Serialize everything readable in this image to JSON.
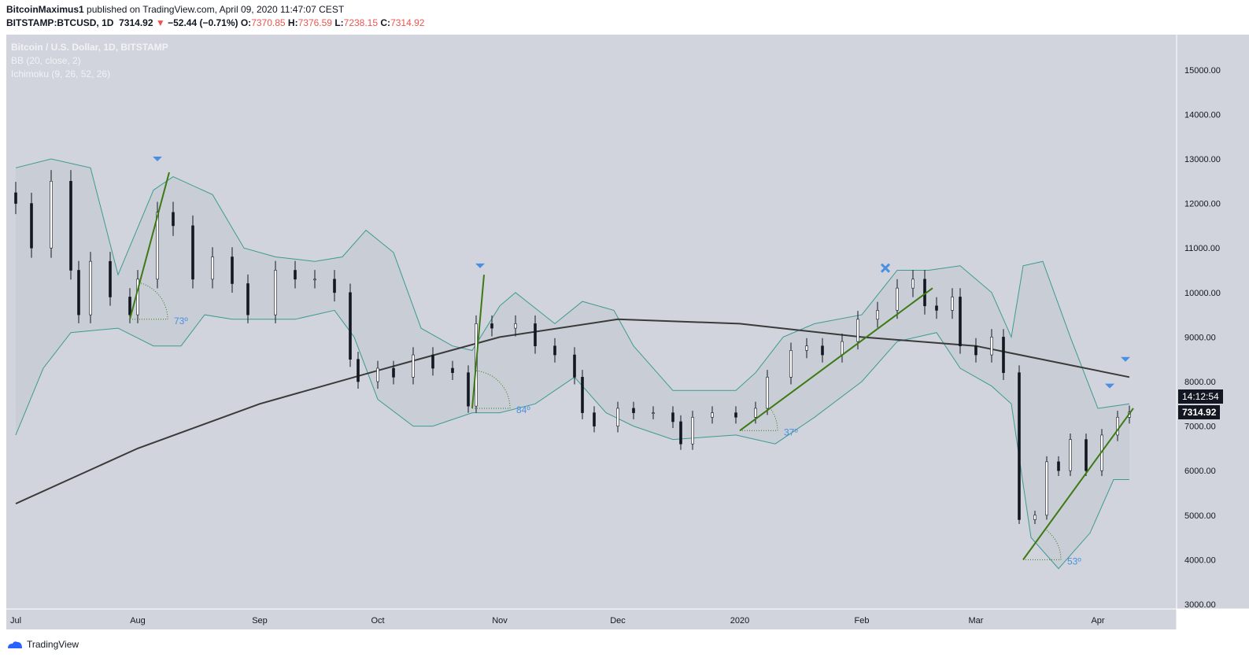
{
  "header": {
    "author": "BitcoinMaximus1",
    "published": "published on TradingView.com, April 09, 2020 11:47:07 CEST",
    "symbol": "BITSTAMP:BTCUSD, 1D",
    "last": "7314.92",
    "change": "−52.44 (−0.71%)",
    "o_label": "O:",
    "o": "7370.85",
    "h_label": "H:",
    "h": "7376.59",
    "l_label": "L:",
    "l": "7238.15",
    "c_label": "C:",
    "c": "7314.92"
  },
  "legend": {
    "series": "Bitcoin / U.S. Dollar, 1D, BITSTAMP",
    "bb": "BB (20, close, 2)",
    "ichimoku": "Ichimoku (9, 26, 52, 26)"
  },
  "price_tag": "7314.92",
  "countdown": "14:12:54",
  "footer": {
    "brand": "TradingView"
  },
  "colors": {
    "background": "#d1d4dc",
    "up": "#ffffff",
    "down": "#131722",
    "band": "#3d9a92",
    "ma": "#3a3a3a",
    "trend": "#3c7a13",
    "annotation": "#4a90e2"
  },
  "chart_data": {
    "type": "candlestick",
    "ylim": [
      3000,
      15500
    ],
    "yticks": [
      3000,
      4000,
      5000,
      6000,
      7000,
      8000,
      9000,
      10000,
      11000,
      12000,
      13000,
      14000,
      15000
    ],
    "ytick_labels": [
      "3000.00",
      "4000.00",
      "5000.00",
      "6000.00",
      "7000.00",
      "8000.00",
      "9000.00",
      "10000.00",
      "11000.00",
      "12000.00",
      "13000.00",
      "14000.00",
      "15000.00"
    ],
    "xticks": [
      {
        "date": "2019-07-01",
        "label": "Jul"
      },
      {
        "date": "2019-08-01",
        "label": "Aug"
      },
      {
        "date": "2019-09-01",
        "label": "Sep"
      },
      {
        "date": "2019-10-01",
        "label": "Oct"
      },
      {
        "date": "2019-11-01",
        "label": "Nov"
      },
      {
        "date": "2019-12-01",
        "label": "Dec"
      },
      {
        "date": "2020-01-01",
        "label": "2020"
      },
      {
        "date": "2020-02-01",
        "label": "Feb"
      },
      {
        "date": "2020-03-01",
        "label": "Mar"
      },
      {
        "date": "2020-04-01",
        "label": "Apr"
      }
    ],
    "closes": [
      [
        "2019-07-01",
        12000
      ],
      [
        "2019-07-05",
        11000
      ],
      [
        "2019-07-10",
        12500
      ],
      [
        "2019-07-15",
        10500
      ],
      [
        "2019-07-17",
        9500
      ],
      [
        "2019-07-20",
        10700
      ],
      [
        "2019-07-25",
        9900
      ],
      [
        "2019-07-30",
        9500
      ],
      [
        "2019-08-01",
        10300
      ],
      [
        "2019-08-06",
        11800
      ],
      [
        "2019-08-10",
        11500
      ],
      [
        "2019-08-15",
        10300
      ],
      [
        "2019-08-20",
        10800
      ],
      [
        "2019-08-25",
        10200
      ],
      [
        "2019-08-29",
        9500
      ],
      [
        "2019-09-05",
        10500
      ],
      [
        "2019-09-10",
        10300
      ],
      [
        "2019-09-15",
        10300
      ],
      [
        "2019-09-20",
        10000
      ],
      [
        "2019-09-24",
        8500
      ],
      [
        "2019-09-26",
        8000
      ],
      [
        "2019-10-01",
        8300
      ],
      [
        "2019-10-05",
        8100
      ],
      [
        "2019-10-10",
        8600
      ],
      [
        "2019-10-15",
        8300
      ],
      [
        "2019-10-20",
        8200
      ],
      [
        "2019-10-24",
        7450
      ],
      [
        "2019-10-26",
        9300
      ],
      [
        "2019-10-30",
        9200
      ],
      [
        "2019-11-05",
        9300
      ],
      [
        "2019-11-10",
        8800
      ],
      [
        "2019-11-15",
        8600
      ],
      [
        "2019-11-20",
        8100
      ],
      [
        "2019-11-22",
        7300
      ],
      [
        "2019-11-25",
        7000
      ],
      [
        "2019-12-01",
        7400
      ],
      [
        "2019-12-05",
        7300
      ],
      [
        "2019-12-10",
        7300
      ],
      [
        "2019-12-15",
        7100
      ],
      [
        "2019-12-17",
        6600
      ],
      [
        "2019-12-20",
        7200
      ],
      [
        "2019-12-25",
        7300
      ],
      [
        "2019-12-31",
        7200
      ],
      [
        "2020-01-05",
        7400
      ],
      [
        "2020-01-08",
        8100
      ],
      [
        "2020-01-14",
        8700
      ],
      [
        "2020-01-18",
        8800
      ],
      [
        "2020-01-22",
        8600
      ],
      [
        "2020-01-27",
        8900
      ],
      [
        "2020-01-31",
        9400
      ],
      [
        "2020-02-05",
        9600
      ],
      [
        "2020-02-10",
        10100
      ],
      [
        "2020-02-14",
        10300
      ],
      [
        "2020-02-17",
        9700
      ],
      [
        "2020-02-20",
        9600
      ],
      [
        "2020-02-24",
        9900
      ],
      [
        "2020-02-26",
        8800
      ],
      [
        "2020-03-01",
        8600
      ],
      [
        "2020-03-05",
        9000
      ],
      [
        "2020-03-08",
        8200
      ],
      [
        "2020-03-12",
        4900
      ],
      [
        "2020-03-16",
        5000
      ],
      [
        "2020-03-19",
        6200
      ],
      [
        "2020-03-22",
        6000
      ],
      [
        "2020-03-25",
        6700
      ],
      [
        "2020-03-29",
        6000
      ],
      [
        "2020-04-02",
        6800
      ],
      [
        "2020-04-06",
        7200
      ],
      [
        "2020-04-09",
        7315
      ]
    ],
    "bb_upper": [
      [
        "2019-07-01",
        12800
      ],
      [
        "2019-07-10",
        13000
      ],
      [
        "2019-07-20",
        12800
      ],
      [
        "2019-07-27",
        10400
      ],
      [
        "2019-08-05",
        12300
      ],
      [
        "2019-08-10",
        12600
      ],
      [
        "2019-08-20",
        12200
      ],
      [
        "2019-08-28",
        11000
      ],
      [
        "2019-09-05",
        10800
      ],
      [
        "2019-09-15",
        10700
      ],
      [
        "2019-09-22",
        10800
      ],
      [
        "2019-09-28",
        11400
      ],
      [
        "2019-10-05",
        10900
      ],
      [
        "2019-10-12",
        9200
      ],
      [
        "2019-10-20",
        8800
      ],
      [
        "2019-10-25",
        8700
      ],
      [
        "2019-11-01",
        9700
      ],
      [
        "2019-11-05",
        10000
      ],
      [
        "2019-11-15",
        9300
      ],
      [
        "2019-11-22",
        9800
      ],
      [
        "2019-11-30",
        9600
      ],
      [
        "2019-12-05",
        8800
      ],
      [
        "2019-12-15",
        7800
      ],
      [
        "2019-12-31",
        7800
      ],
      [
        "2020-01-05",
        8200
      ],
      [
        "2020-01-12",
        9000
      ],
      [
        "2020-01-20",
        9300
      ],
      [
        "2020-02-01",
        9500
      ],
      [
        "2020-02-10",
        10500
      ],
      [
        "2020-02-18",
        10500
      ],
      [
        "2020-02-26",
        10600
      ],
      [
        "2020-03-05",
        10000
      ],
      [
        "2020-03-10",
        9000
      ],
      [
        "2020-03-13",
        10600
      ],
      [
        "2020-03-18",
        10700
      ],
      [
        "2020-03-25",
        9000
      ],
      [
        "2020-04-01",
        7400
      ],
      [
        "2020-04-09",
        7500
      ]
    ],
    "bb_lower": [
      [
        "2019-07-01",
        6800
      ],
      [
        "2019-07-08",
        8300
      ],
      [
        "2019-07-15",
        9100
      ],
      [
        "2019-07-27",
        9200
      ],
      [
        "2019-08-05",
        8800
      ],
      [
        "2019-08-12",
        8800
      ],
      [
        "2019-08-18",
        9500
      ],
      [
        "2019-08-25",
        9400
      ],
      [
        "2019-09-01",
        9400
      ],
      [
        "2019-09-10",
        9400
      ],
      [
        "2019-09-20",
        9600
      ],
      [
        "2019-09-25",
        9000
      ],
      [
        "2019-10-01",
        7600
      ],
      [
        "2019-10-10",
        7000
      ],
      [
        "2019-10-15",
        7000
      ],
      [
        "2019-10-25",
        7300
      ],
      [
        "2019-11-01",
        7300
      ],
      [
        "2019-11-10",
        7500
      ],
      [
        "2019-11-20",
        8100
      ],
      [
        "2019-11-28",
        7300
      ],
      [
        "2019-12-05",
        7000
      ],
      [
        "2019-12-15",
        6700
      ],
      [
        "2019-12-31",
        6800
      ],
      [
        "2020-01-10",
        6600
      ],
      [
        "2020-01-20",
        7200
      ],
      [
        "2020-02-01",
        8000
      ],
      [
        "2020-02-10",
        8900
      ],
      [
        "2020-02-20",
        9100
      ],
      [
        "2020-02-26",
        8300
      ],
      [
        "2020-03-05",
        7900
      ],
      [
        "2020-03-10",
        7500
      ],
      [
        "2020-03-15",
        4500
      ],
      [
        "2020-03-22",
        3800
      ],
      [
        "2020-03-30",
        4600
      ],
      [
        "2020-04-05",
        5800
      ],
      [
        "2020-04-09",
        5800
      ]
    ],
    "ma": [
      [
        "2019-07-01",
        5260
      ],
      [
        "2019-08-01",
        6500
      ],
      [
        "2019-09-01",
        7500
      ],
      [
        "2019-10-01",
        8250
      ],
      [
        "2019-11-01",
        9000
      ],
      [
        "2019-12-01",
        9400
      ],
      [
        "2020-01-01",
        9300
      ],
      [
        "2020-02-01",
        9000
      ],
      [
        "2020-03-01",
        8800
      ],
      [
        "2020-04-09",
        8100
      ]
    ],
    "trendlines": [
      [
        [
          "2019-07-30",
          9400
        ],
        [
          "2019-08-09",
          12700
        ]
      ],
      [
        [
          "2019-10-25",
          7400
        ],
        [
          "2019-10-28",
          10400
        ]
      ],
      [
        [
          "2020-01-01",
          6900
        ],
        [
          "2020-02-19",
          10100
        ]
      ],
      [
        [
          "2020-03-13",
          4000
        ],
        [
          "2020-04-10",
          7400
        ]
      ]
    ],
    "angles": [
      {
        "date": "2019-07-30",
        "price": 9400,
        "label": "73º"
      },
      {
        "date": "2019-10-25",
        "price": 7400,
        "label": "84º"
      },
      {
        "date": "2020-01-01",
        "price": 6900,
        "label": "37º"
      },
      {
        "date": "2020-03-13",
        "price": 4000,
        "label": "53º"
      }
    ],
    "markers": [
      {
        "type": "triangle-down",
        "date": "2019-08-06",
        "price": 13000
      },
      {
        "type": "triangle-down",
        "date": "2019-10-27",
        "price": 10600
      },
      {
        "type": "cross",
        "date": "2020-02-07",
        "price": 10550
      },
      {
        "type": "triangle-down",
        "date": "2020-04-04",
        "price": 7900
      },
      {
        "type": "triangle-down",
        "date": "2020-04-08",
        "price": 8500
      }
    ]
  }
}
